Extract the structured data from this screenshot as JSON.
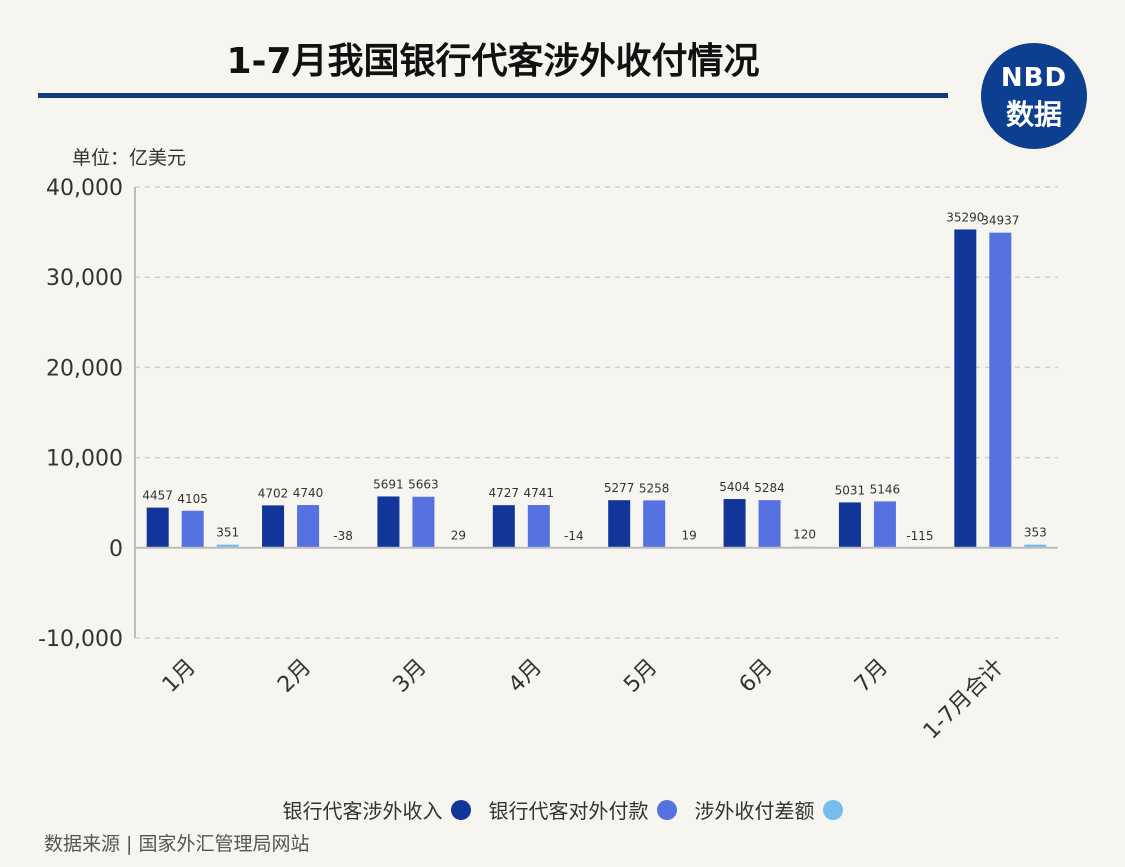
{
  "title": "1-7月我国银行代客涉外收付情况",
  "logo": {
    "line1": "NBD",
    "line2": "数据"
  },
  "unit_label": "单位：亿美元",
  "source": "数据来源 | 国家外汇管理局网站",
  "colors": {
    "income": "#12359a",
    "payment": "#5572e0",
    "balance": "#74bdee",
    "background": "#f7f5f0",
    "title_rule": "#123b7e"
  },
  "legend": [
    {
      "label": "银行代客涉外收入",
      "color": "#12359a"
    },
    {
      "label": "银行代客对外付款",
      "color": "#5572e0"
    },
    {
      "label": "涉外收付差额",
      "color": "#74bdee"
    }
  ],
  "chart_data": {
    "type": "bar",
    "categories": [
      "1月",
      "2月",
      "3月",
      "4月",
      "5月",
      "6月",
      "7月",
      "1-7月合计"
    ],
    "series": [
      {
        "name": "银行代客涉外收入",
        "values": [
          4457,
          4702,
          5691,
          4727,
          5277,
          5404,
          5031,
          35290
        ]
      },
      {
        "name": "银行代客对外付款",
        "values": [
          4105,
          4740,
          5663,
          4741,
          5258,
          5284,
          5146,
          34937
        ]
      },
      {
        "name": "涉外收付差额",
        "values": [
          351,
          -38,
          29,
          -14,
          19,
          120,
          -115,
          353
        ]
      }
    ],
    "ylim": [
      -10000,
      40000
    ],
    "yticks": [
      "-10,000",
      "0",
      "10,000",
      "20,000",
      "30,000",
      "40,000"
    ],
    "ytick_values": [
      -10000,
      0,
      10000,
      20000,
      30000,
      40000
    ],
    "grid": true,
    "legend_position": "bottom"
  }
}
